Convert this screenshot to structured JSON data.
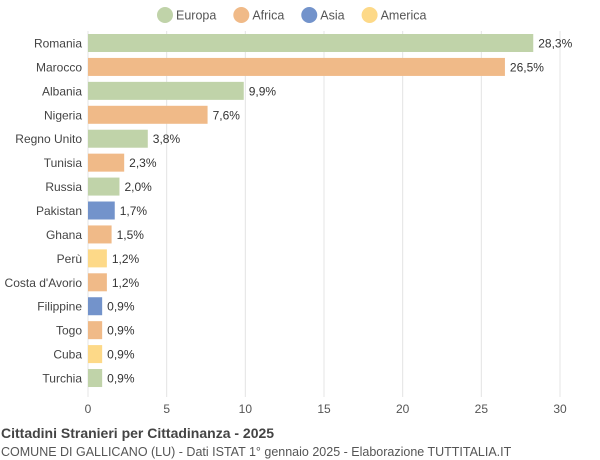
{
  "chart_data": {
    "type": "bar",
    "orientation": "horizontal",
    "title": "Cittadini Stranieri per Cittadinanza - 2025",
    "subtitle": "COMUNE DI GALLICANO (LU) - Dati ISTAT 1° gennaio 2025 - Elaborazione TUTTITALIA.IT",
    "legend_position": "top",
    "legend": [
      {
        "name": "Europa",
        "color": "#c0d3a9"
      },
      {
        "name": "Africa",
        "color": "#f0ba88"
      },
      {
        "name": "Asia",
        "color": "#7393cb"
      },
      {
        "name": "America",
        "color": "#fdd988"
      }
    ],
    "categories": [
      "Romania",
      "Marocco",
      "Albania",
      "Nigeria",
      "Regno Unito",
      "Tunisia",
      "Russia",
      "Pakistan",
      "Ghana",
      "Perù",
      "Costa d'Avorio",
      "Filippine",
      "Togo",
      "Cuba",
      "Turchia"
    ],
    "values": [
      28.3,
      26.5,
      9.9,
      7.6,
      3.8,
      2.3,
      2.0,
      1.7,
      1.5,
      1.2,
      1.2,
      0.9,
      0.9,
      0.9,
      0.9
    ],
    "labels": [
      "28,3%",
      "26,5%",
      "9,9%",
      "7,6%",
      "3,8%",
      "2,3%",
      "2,0%",
      "1,7%",
      "1,5%",
      "1,2%",
      "1,2%",
      "0,9%",
      "0,9%",
      "0,9%",
      "0,9%"
    ],
    "groups": [
      "Europa",
      "Africa",
      "Europa",
      "Africa",
      "Europa",
      "Africa",
      "Europa",
      "Asia",
      "Africa",
      "America",
      "Africa",
      "Asia",
      "Africa",
      "America",
      "Europa"
    ],
    "xlim": [
      0,
      30
    ],
    "xticks": [
      "0",
      "5",
      "10",
      "15",
      "20",
      "25",
      "30"
    ],
    "grid": true
  }
}
